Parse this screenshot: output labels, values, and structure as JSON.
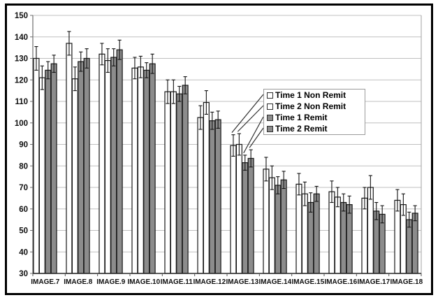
{
  "figure": {
    "background": "#ffffff",
    "outer_border_color": "#000000",
    "gridline_color": "#bfbfbf",
    "axis_color": "#6e6e6e",
    "bar_outline_color": "#161616"
  },
  "chart_data": {
    "type": "bar",
    "title": "",
    "xlabel": "",
    "ylabel": "",
    "categories": [
      "IMAGE.7",
      "IMAGE.8",
      "IMAGE.9",
      "IMAGE.10",
      "IMAGE.11",
      "IMAGE.12",
      "IMAGE.13",
      "IMAGE.14",
      "IMAGE.15",
      "IMAGE.16",
      "IMAGE.17",
      "IMAGE.18"
    ],
    "series": [
      {
        "name": "Time 1 Non Remit",
        "fill": "#ffffff",
        "values": [
          130,
          137,
          132,
          125.5,
          114.5,
          102.5,
          89.5,
          78.5,
          71.5,
          68,
          65,
          64
        ],
        "errors": [
          5.5,
          5.5,
          5,
          5,
          5.5,
          5.5,
          5,
          5.5,
          5,
          5,
          5,
          5
        ]
      },
      {
        "name": "Time 2 Non Remit",
        "fill": "#ffffff",
        "values": [
          121,
          120.5,
          129,
          126,
          114.5,
          109.5,
          90,
          74.5,
          67,
          65.5,
          70,
          62
        ],
        "errors": [
          5.5,
          5.5,
          5.5,
          5,
          5.5,
          5.5,
          5,
          5.5,
          5.5,
          4.5,
          5.5,
          5
        ]
      },
      {
        "name": "Time 1 Remit",
        "fill": "#8c8c8c",
        "values": [
          124.5,
          128.5,
          130.5,
          124.5,
          113.5,
          101,
          81.5,
          71,
          63,
          63,
          59,
          55
        ],
        "errors": [
          4,
          4.5,
          4,
          3.5,
          3.5,
          4,
          3.5,
          4,
          4.5,
          4,
          4,
          3.5
        ]
      },
      {
        "name": "Time 2 Remit",
        "fill": "#8c8c8c",
        "values": [
          127.5,
          130,
          134,
          127.5,
          117.5,
          101.5,
          83.5,
          73.5,
          67,
          62,
          57.5,
          58
        ],
        "errors": [
          4,
          4.5,
          4.5,
          4.5,
          4,
          4,
          4,
          4,
          3.5,
          4,
          4,
          3.5
        ]
      }
    ],
    "ylim": [
      30,
      150
    ],
    "yticks": [
      30,
      40,
      50,
      60,
      70,
      80,
      90,
      100,
      110,
      120,
      130,
      140,
      150
    ],
    "grid": true,
    "error_bars": true,
    "legend_position": "inside-right",
    "annotations": {
      "legend_callouts_to_category": "IMAGE.13"
    }
  }
}
